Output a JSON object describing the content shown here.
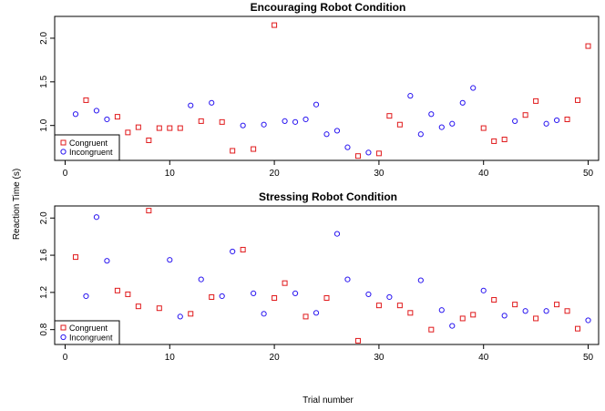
{
  "figure": {
    "ylabel": "Reaction Time (s)",
    "xlabel": "Trial number",
    "colors": {
      "congruent": "#e0191b",
      "incongruent": "#2a16f0"
    }
  },
  "chart_data": [
    {
      "type": "scatter",
      "title": "Encouraging Robot Condition",
      "xlim": [
        -1,
        51
      ],
      "ylim": [
        0.6,
        2.25
      ],
      "xticks": [
        "0",
        "10",
        "20",
        "30",
        "40",
        "50"
      ],
      "yticks": [
        "1.0",
        "1.5",
        "2.0"
      ],
      "legend": "bottom-left",
      "series": [
        {
          "name": "Congruent",
          "marker": "square",
          "x": [
            2,
            5,
            6,
            7,
            8,
            9,
            10,
            11,
            13,
            15,
            16,
            18,
            20,
            28,
            30,
            31,
            32,
            40,
            41,
            42,
            44,
            45,
            48,
            49,
            50
          ],
          "y": [
            1.29,
            1.1,
            0.92,
            0.98,
            0.83,
            0.97,
            0.97,
            0.97,
            1.05,
            1.04,
            0.71,
            0.73,
            2.15,
            0.65,
            0.68,
            1.11,
            1.01,
            0.97,
            0.82,
            0.84,
            1.12,
            1.28,
            1.07,
            1.29,
            1.91
          ]
        },
        {
          "name": "Incongruent",
          "marker": "circle",
          "x": [
            1,
            3,
            4,
            12,
            14,
            17,
            19,
            21,
            22,
            23,
            24,
            25,
            26,
            27,
            29,
            33,
            34,
            35,
            36,
            37,
            38,
            39,
            43,
            46,
            47
          ],
          "y": [
            1.13,
            1.17,
            1.07,
            1.23,
            1.26,
            1.0,
            1.01,
            1.05,
            1.04,
            1.07,
            1.24,
            0.9,
            0.94,
            0.75,
            0.69,
            1.34,
            0.9,
            1.13,
            0.98,
            1.02,
            1.26,
            1.43,
            1.05,
            1.02,
            1.06
          ]
        }
      ]
    },
    {
      "type": "scatter",
      "title": "Stressing Robot Condition",
      "xlim": [
        -1,
        51
      ],
      "ylim": [
        0.64,
        2.13
      ],
      "xticks": [
        "0",
        "10",
        "20",
        "30",
        "40",
        "50"
      ],
      "yticks": [
        "0.8",
        "1.2",
        "1.6",
        "2.0"
      ],
      "legend": "bottom-left",
      "series": [
        {
          "name": "Congruent",
          "marker": "square",
          "x": [
            1,
            5,
            6,
            7,
            8,
            9,
            12,
            14,
            17,
            20,
            21,
            23,
            25,
            28,
            30,
            32,
            33,
            35,
            38,
            39,
            41,
            43,
            45,
            47,
            48,
            49
          ],
          "y": [
            1.58,
            1.22,
            1.18,
            1.05,
            2.08,
            1.03,
            0.97,
            1.15,
            1.66,
            1.14,
            1.3,
            0.94,
            1.14,
            0.68,
            1.06,
            1.06,
            0.98,
            0.8,
            0.92,
            0.96,
            1.12,
            1.07,
            0.92,
            1.07,
            1.0,
            0.81
          ]
        },
        {
          "name": "Incongruent",
          "marker": "circle",
          "x": [
            2,
            3,
            4,
            10,
            11,
            13,
            15,
            16,
            18,
            19,
            22,
            24,
            26,
            27,
            29,
            31,
            34,
            36,
            37,
            40,
            42,
            44,
            46,
            50
          ],
          "y": [
            1.16,
            2.01,
            1.54,
            1.55,
            0.94,
            1.34,
            1.16,
            1.64,
            1.19,
            0.97,
            1.19,
            0.98,
            1.83,
            1.34,
            1.18,
            1.15,
            1.33,
            1.01,
            0.84,
            1.22,
            0.95,
            1.0,
            1.0,
            0.9
          ]
        }
      ]
    }
  ]
}
